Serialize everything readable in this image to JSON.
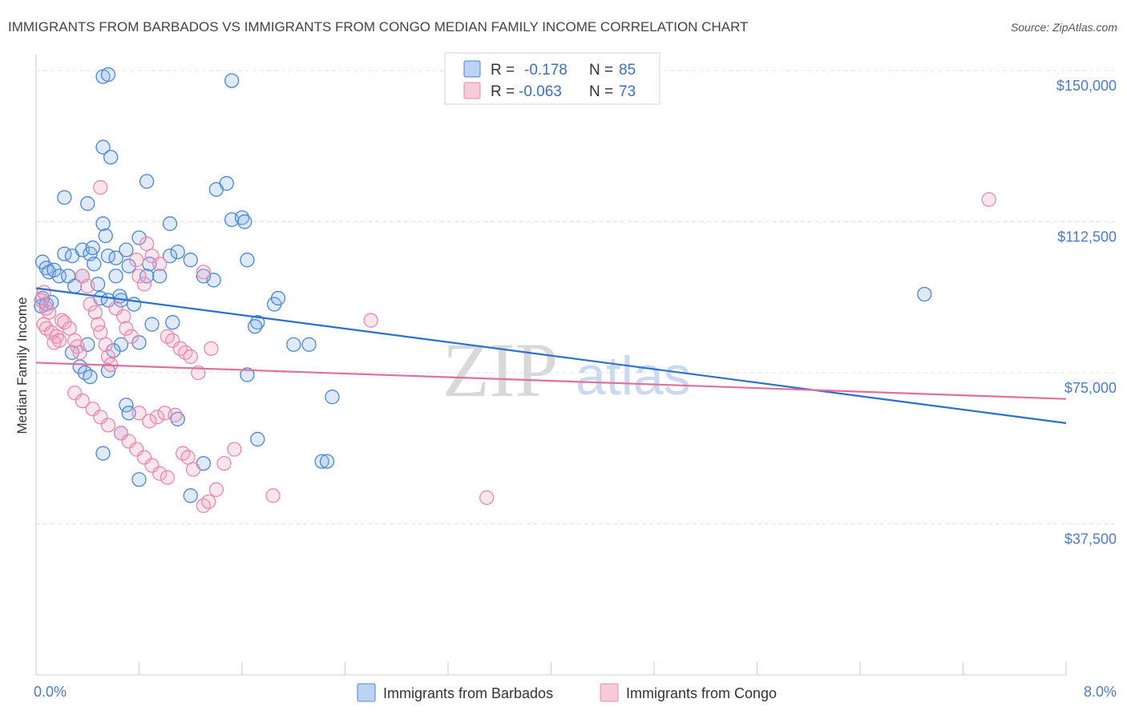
{
  "title": "IMMIGRANTS FROM BARBADOS VS IMMIGRANTS FROM CONGO MEDIAN FAMILY INCOME CORRELATION CHART",
  "source": "Source: ZipAtlas.com",
  "watermark": {
    "zip": "ZIP",
    "atlas": "atlas"
  },
  "stats_legend": [
    {
      "r_label": "R =",
      "r_value": "-0.178",
      "n_label": "N =",
      "n_value": "85"
    },
    {
      "r_label": "R =",
      "r_value": "-0.063",
      "n_label": "N =",
      "n_value": "73"
    }
  ],
  "bottom_legend": [
    "Immigrants from Barbados",
    "Immigrants from Congo"
  ],
  "chart_data": {
    "type": "scatter",
    "ylabel": "Median Family Income",
    "xlabel": "",
    "xlim": [
      0,
      8
    ],
    "ylim": [
      0,
      152000
    ],
    "x_tick_labels": [
      "0.0%",
      "8.0%"
    ],
    "y_ticks": [
      37500,
      75000,
      112500,
      150000
    ],
    "y_tick_labels": [
      "$37,500",
      "$75,000",
      "$112,500",
      "$150,000"
    ],
    "grid": "horizontal dashed",
    "colors": {
      "barbados": "#4a86d8",
      "congo": "#e98aaa",
      "barbados_line": "#2b6fd1",
      "congo_line": "#e0709a"
    },
    "series": [
      {
        "name": "Immigrants from Barbados",
        "color": "#4a86d8",
        "trend": [
          [
            0,
            96000
          ],
          [
            8,
            62500
          ]
        ],
        "points": [
          [
            0.05,
            102500
          ],
          [
            0.08,
            101000
          ],
          [
            0.1,
            100000
          ],
          [
            0.14,
            100500
          ],
          [
            0.05,
            93500
          ],
          [
            0.04,
            91500
          ],
          [
            0.08,
            92000
          ],
          [
            0.12,
            92500
          ],
          [
            0.18,
            99000
          ],
          [
            0.22,
            104500
          ],
          [
            0.28,
            104000
          ],
          [
            0.36,
            105500
          ],
          [
            0.25,
            99000
          ],
          [
            0.3,
            96500
          ],
          [
            0.36,
            99000
          ],
          [
            0.42,
            104500
          ],
          [
            0.44,
            106000
          ],
          [
            0.45,
            102000
          ],
          [
            0.48,
            97000
          ],
          [
            0.5,
            93500
          ],
          [
            0.56,
            93000
          ],
          [
            0.62,
            99000
          ],
          [
            0.66,
            93000
          ],
          [
            0.7,
            105500
          ],
          [
            0.22,
            118500
          ],
          [
            0.4,
            117000
          ],
          [
            0.52,
            112000
          ],
          [
            0.54,
            109000
          ],
          [
            0.56,
            104000
          ],
          [
            0.62,
            103500
          ],
          [
            0.65,
            94000
          ],
          [
            0.72,
            101500
          ],
          [
            0.8,
            108500
          ],
          [
            0.88,
            102000
          ],
          [
            0.96,
            99000
          ],
          [
            1.04,
            104000
          ],
          [
            1.2,
            103000
          ],
          [
            1.4,
            120500
          ],
          [
            1.48,
            122000
          ],
          [
            1.52,
            113000
          ],
          [
            1.38,
            98000
          ],
          [
            1.3,
            99000
          ],
          [
            1.1,
            105000
          ],
          [
            0.86,
            99000
          ],
          [
            0.76,
            92000
          ],
          [
            0.52,
            148500
          ],
          [
            0.56,
            149000
          ],
          [
            1.52,
            147500
          ],
          [
            0.52,
            131000
          ],
          [
            0.58,
            128500
          ],
          [
            0.86,
            122500
          ],
          [
            1.04,
            112000
          ],
          [
            1.6,
            113500
          ],
          [
            1.62,
            112500
          ],
          [
            1.64,
            103000
          ],
          [
            1.72,
            87500
          ],
          [
            1.7,
            86500
          ],
          [
            1.85,
            92000
          ],
          [
            1.88,
            93500
          ],
          [
            2.0,
            82000
          ],
          [
            2.12,
            82000
          ],
          [
            1.06,
            87500
          ],
          [
            0.9,
            87000
          ],
          [
            0.8,
            82500
          ],
          [
            0.66,
            82000
          ],
          [
            0.6,
            80500
          ],
          [
            0.4,
            82000
          ],
          [
            0.28,
            80000
          ],
          [
            0.34,
            76500
          ],
          [
            0.38,
            75000
          ],
          [
            0.42,
            74000
          ],
          [
            0.56,
            75500
          ],
          [
            0.7,
            67000
          ],
          [
            0.72,
            65000
          ],
          [
            0.66,
            60000
          ],
          [
            0.52,
            55000
          ],
          [
            0.8,
            48500
          ],
          [
            1.1,
            63500
          ],
          [
            1.2,
            44500
          ],
          [
            1.3,
            52500
          ],
          [
            1.64,
            74500
          ],
          [
            1.72,
            58500
          ],
          [
            2.22,
            53000
          ],
          [
            2.26,
            53000
          ],
          [
            2.3,
            69000
          ],
          [
            6.9,
            94500
          ]
        ]
      },
      {
        "name": "Immigrants from Congo",
        "color": "#e98aaa",
        "trend": [
          [
            0,
            77500
          ],
          [
            8,
            68500
          ]
        ],
        "points": [
          [
            0.04,
            93000
          ],
          [
            0.06,
            95000
          ],
          [
            0.08,
            91000
          ],
          [
            0.1,
            90000
          ],
          [
            0.06,
            87000
          ],
          [
            0.08,
            86000
          ],
          [
            0.12,
            85000
          ],
          [
            0.16,
            84000
          ],
          [
            0.2,
            88000
          ],
          [
            0.22,
            87500
          ],
          [
            0.26,
            86000
          ],
          [
            0.3,
            83000
          ],
          [
            0.32,
            81500
          ],
          [
            0.34,
            80000
          ],
          [
            0.18,
            83000
          ],
          [
            0.14,
            82500
          ],
          [
            0.4,
            96500
          ],
          [
            0.42,
            92000
          ],
          [
            0.46,
            90000
          ],
          [
            0.48,
            87000
          ],
          [
            0.5,
            85000
          ],
          [
            0.54,
            82000
          ],
          [
            0.56,
            79000
          ],
          [
            0.58,
            77000
          ],
          [
            0.36,
            99000
          ],
          [
            0.62,
            91000
          ],
          [
            0.68,
            89000
          ],
          [
            0.7,
            86000
          ],
          [
            0.74,
            84000
          ],
          [
            0.78,
            103000
          ],
          [
            0.8,
            99000
          ],
          [
            0.84,
            97000
          ],
          [
            0.86,
            107000
          ],
          [
            0.9,
            104000
          ],
          [
            0.96,
            102000
          ],
          [
            1.02,
            84000
          ],
          [
            1.06,
            83000
          ],
          [
            1.12,
            81000
          ],
          [
            1.16,
            80000
          ],
          [
            1.2,
            79000
          ],
          [
            1.26,
            75000
          ],
          [
            1.3,
            100000
          ],
          [
            1.36,
            81000
          ],
          [
            0.5,
            121000
          ],
          [
            0.3,
            70000
          ],
          [
            0.36,
            68000
          ],
          [
            0.44,
            66000
          ],
          [
            0.5,
            64000
          ],
          [
            0.56,
            62000
          ],
          [
            0.66,
            60000
          ],
          [
            0.72,
            58000
          ],
          [
            0.78,
            56000
          ],
          [
            0.84,
            54000
          ],
          [
            0.9,
            52000
          ],
          [
            0.96,
            50000
          ],
          [
            1.02,
            49000
          ],
          [
            0.8,
            65000
          ],
          [
            0.88,
            63000
          ],
          [
            0.94,
            64000
          ],
          [
            1.0,
            65000
          ],
          [
            1.08,
            64500
          ],
          [
            1.14,
            55000
          ],
          [
            1.18,
            54000
          ],
          [
            1.22,
            51000
          ],
          [
            1.3,
            42000
          ],
          [
            1.34,
            43000
          ],
          [
            1.4,
            46000
          ],
          [
            1.46,
            52500
          ],
          [
            1.54,
            56000
          ],
          [
            1.84,
            44500
          ],
          [
            2.6,
            88000
          ],
          [
            3.5,
            44000
          ],
          [
            7.4,
            118000
          ]
        ]
      }
    ]
  }
}
